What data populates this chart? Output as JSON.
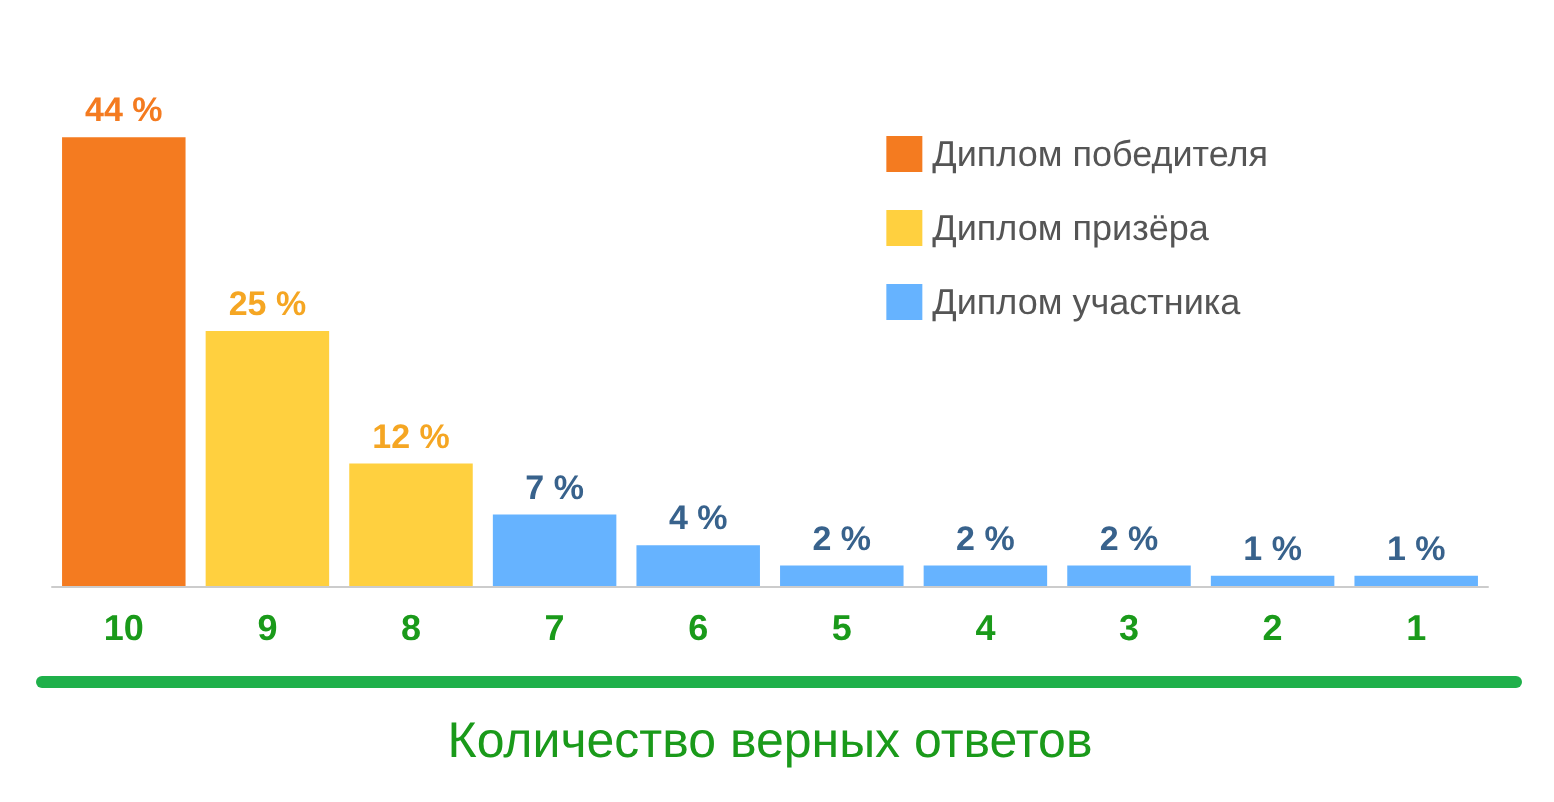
{
  "chart_data": {
    "type": "bar",
    "xlabel": "Количество верных ответов",
    "categories": [
      "10",
      "9",
      "8",
      "7",
      "6",
      "5",
      "4",
      "3",
      "2",
      "1"
    ],
    "series": [
      {
        "name": "Диплом победителя",
        "color": "#f47b20",
        "values": [
          44,
          null,
          null,
          null,
          null,
          null,
          null,
          null,
          null,
          null
        ],
        "value_labels": [
          "44 %",
          null,
          null,
          null,
          null,
          null,
          null,
          null,
          null,
          null
        ]
      },
      {
        "name": "Диплом призёра",
        "color": "#ffd03f",
        "values": [
          null,
          25,
          12,
          null,
          null,
          null,
          null,
          null,
          null,
          null
        ],
        "value_labels": [
          null,
          "25 %",
          "12 %",
          null,
          null,
          null,
          null,
          null,
          null,
          null
        ]
      },
      {
        "name": "Диплом участника",
        "color": "#66b3ff",
        "values": [
          null,
          null,
          null,
          7,
          4,
          2,
          2,
          2,
          1,
          1
        ],
        "value_labels": [
          null,
          null,
          null,
          "7 %",
          "4 %",
          "2 %",
          "2 %",
          "2 %",
          "1 %",
          "1 %"
        ]
      }
    ],
    "legend": "top right"
  }
}
